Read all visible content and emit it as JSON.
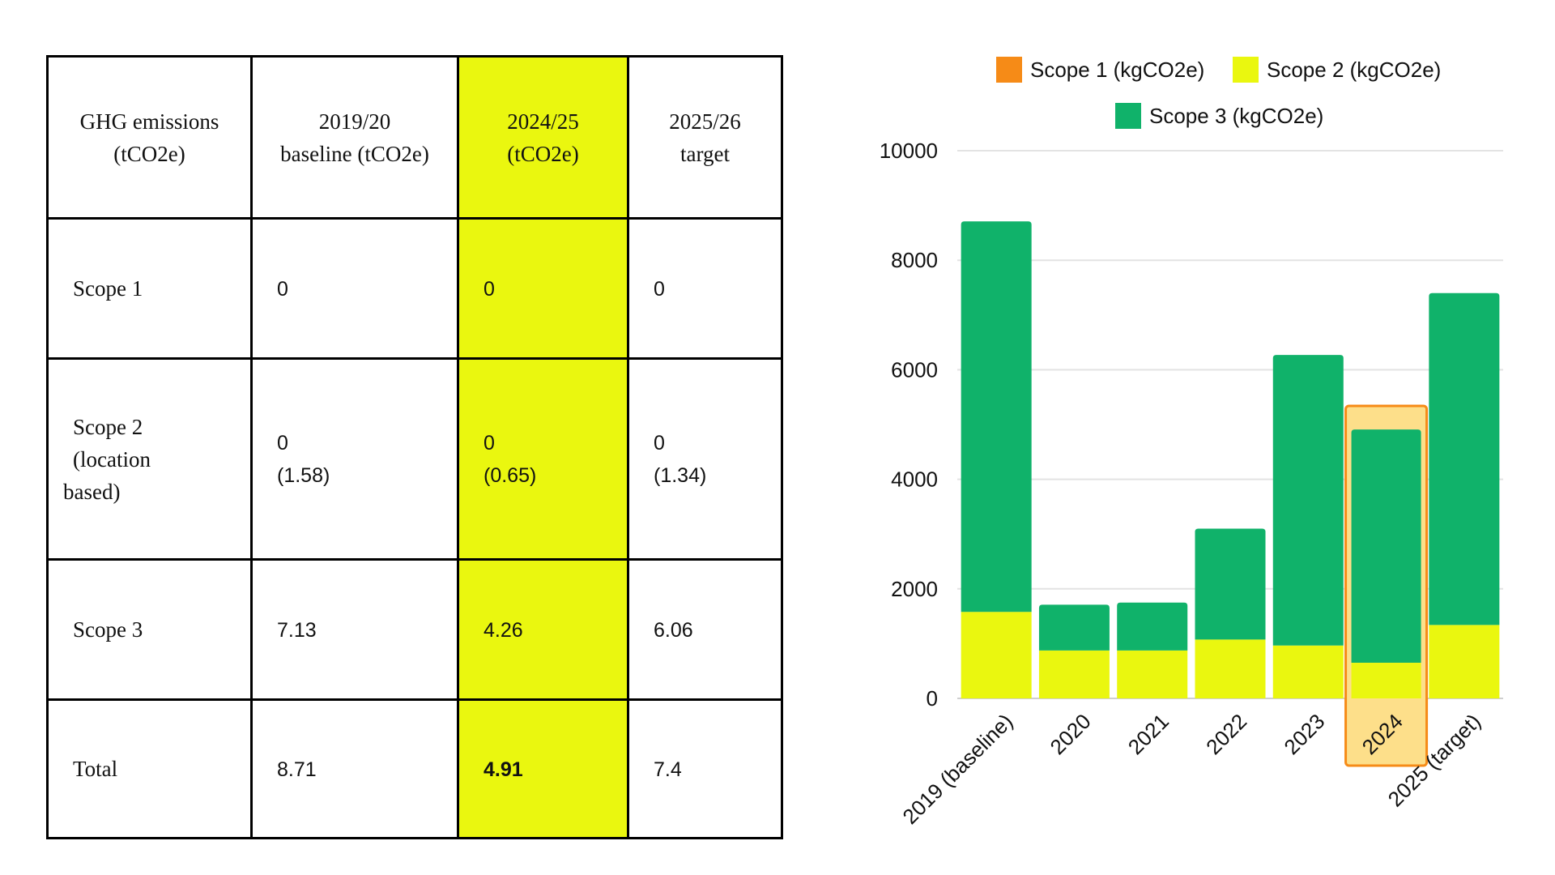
{
  "table": {
    "headers": [
      "GHG emissions (tCO2e)",
      "2019/20 baseline (tCO2e)",
      "2024/25 (tCO2e)",
      "2025/26 target"
    ],
    "header_lines": [
      [
        "GHG emissions",
        "(tCO2e)"
      ],
      [
        "2019/20",
        "baseline (tCO2e)"
      ],
      [
        "2024/25",
        "(tCO2e)"
      ],
      [
        "2025/26",
        "target"
      ]
    ],
    "rows": [
      {
        "label_lines": [
          "Scope 1"
        ],
        "values": [
          [
            "0"
          ],
          [
            "0"
          ],
          [
            "0"
          ]
        ]
      },
      {
        "label_lines": [
          "Scope 2",
          "(location",
          "based)"
        ],
        "values": [
          [
            "0",
            "(1.58)"
          ],
          [
            "0",
            "(0.65)"
          ],
          [
            "0",
            "(1.34)"
          ]
        ]
      },
      {
        "label_lines": [
          "Scope 3"
        ],
        "values": [
          [
            "7.13"
          ],
          [
            "4.26"
          ],
          [
            "6.06"
          ]
        ]
      },
      {
        "label_lines": [
          "Total"
        ],
        "values": [
          [
            "8.71"
          ],
          [
            "4.91"
          ],
          [
            "7.4"
          ]
        ]
      }
    ],
    "highlight_color": "#eaf70f"
  },
  "chart_data": {
    "type": "bar",
    "stacked": true,
    "categories": [
      "2019 (baseline)",
      "2020",
      "2021",
      "2022",
      "2023",
      "2024",
      "2025 (target)"
    ],
    "series": [
      {
        "name": "Scope 1 (kgCO2e)",
        "color": "#f68b17",
        "values": [
          0,
          0,
          0,
          0,
          0,
          0,
          0
        ]
      },
      {
        "name": "Scope 2 (kgCO2e)",
        "color": "#eaf70f",
        "values": [
          1580,
          875,
          875,
          1075,
          965,
          650,
          1340
        ]
      },
      {
        "name": "Scope 3 (kgCO2e)",
        "color": "#10b26a",
        "values": [
          7130,
          835,
          875,
          2025,
          5305,
          4260,
          6060
        ]
      }
    ],
    "ylim": [
      0,
      10000
    ],
    "yticks": [
      "0",
      "2000",
      "4000",
      "6000",
      "8000",
      "10000"
    ],
    "grid": true,
    "legend": "top",
    "highlighted_category": "2024",
    "highlight_color": "#f68b17"
  }
}
